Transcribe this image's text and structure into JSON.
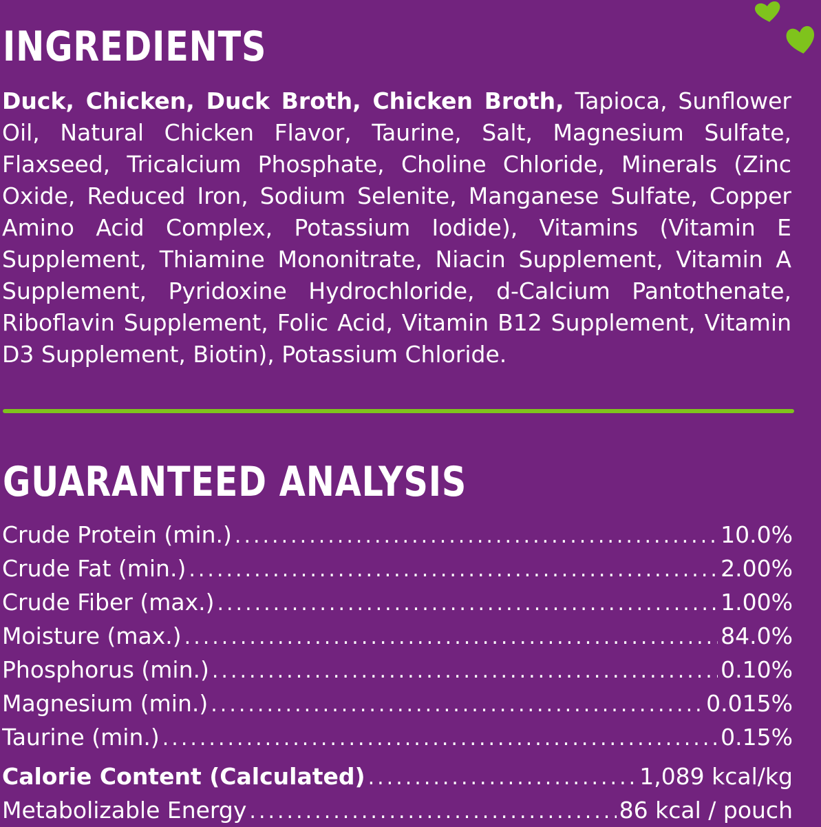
{
  "ingredients": {
    "title": "INGREDIENTS",
    "bold_text": "Duck, Chicken, Duck Broth, Chicken Broth,",
    "text": "Tapioca, Sunflower Oil, Natural Chicken Flavor, Taurine, Salt, Magnesium Sulfate, Flaxseed, Tricalcium Phosphate, Choline Chloride, Minerals (Zinc Oxide, Reduced Iron, Sodium Selenite, Manganese Sulfate, Copper Amino Acid Complex, Potassium Iodide), Vitamins (Vitamin E Supplement, Thiamine Mononitrate, Niacin Supplement, Vitamin A Supplement, Pyridoxine Hydrochloride, d-Calcium Pantothenate, Riboflavin Supplement, Folic Acid, Vitamin B12 Supplement, Vitamin D3 Supplement, Biotin), Potassium Chloride."
  },
  "analysis": {
    "title": "GUARANTEED ANALYSIS",
    "rows": [
      {
        "label": "Crude Protein (min.)",
        "value": "10.0%"
      },
      {
        "label": "Crude Fat (min.)",
        "value": "2.00%"
      },
      {
        "label": "Crude Fiber (max.)",
        "value": "1.00%"
      },
      {
        "label": "Moisture (max.)",
        "value": "84.0%"
      },
      {
        "label": "Phosphorus (min.)",
        "value": "0.10%"
      },
      {
        "label": "Magnesium (min.)",
        "value": "0.015%"
      },
      {
        "label": "Taurine (min.)",
        "value": "0.15%"
      }
    ],
    "calorie_label": "Calorie Content (Calculated)",
    "calorie_value": "1,089 kcal/kg",
    "energy_label": "Metabolizable Energy",
    "energy_value": "86 kcal / pouch"
  },
  "colors": {
    "background": "#72237e",
    "accent": "#7fc31c",
    "text": "#ffffff"
  },
  "icons": [
    "heart-icon",
    "heart-icon"
  ]
}
